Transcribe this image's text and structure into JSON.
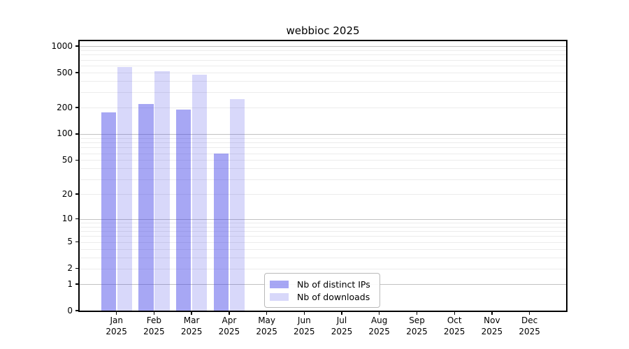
{
  "title": "webbioc 2025",
  "chart_data": {
    "type": "bar",
    "title": "webbioc 2025",
    "categories": [
      "Jan",
      "Feb",
      "Mar",
      "Apr",
      "May",
      "Jun",
      "Jul",
      "Aug",
      "Sep",
      "Oct",
      "Nov",
      "Dec"
    ],
    "category_year": "2025",
    "series": [
      {
        "name": "Nb of distinct IPs",
        "color": "rgba(60,60,230,0.45)",
        "values": [
          175,
          220,
          190,
          60
        ]
      },
      {
        "name": "Nb of downloads",
        "color": "rgba(60,60,230,0.20)",
        "values": [
          575,
          515,
          475,
          250
        ]
      }
    ],
    "y_scale": "log10(value+1)",
    "y_ticks": [
      0,
      1,
      2,
      5,
      10,
      20,
      50,
      100,
      200,
      500,
      1000
    ],
    "y_major_gridlines": [
      1,
      10,
      100,
      1000
    ],
    "ylim": [
      0,
      1140
    ],
    "xlabel": "",
    "ylabel": "",
    "grid": true,
    "legend_position": "lower-center",
    "legend": [
      "Nb of distinct IPs",
      "Nb of downloads"
    ]
  },
  "colors": {
    "bar_distinct_ips": "rgba(60,60,230,0.45)",
    "bar_downloads": "rgba(60,60,230,0.20)",
    "gridline_major": "#c2c2c2",
    "gridline_minor": "#ececec",
    "axis": "#000000",
    "background": "#ffffff"
  }
}
